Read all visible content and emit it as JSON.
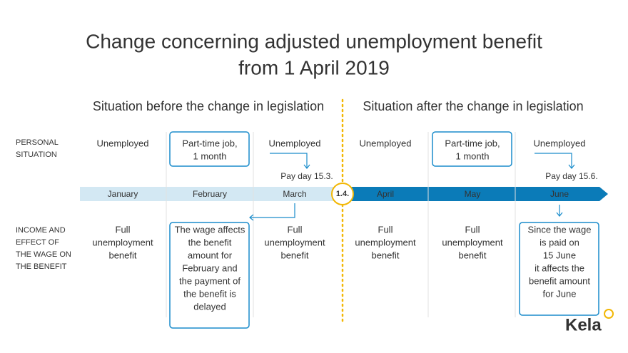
{
  "title": [
    "Change concerning adjusted unemployment benefit",
    "from 1 April 2019"
  ],
  "row_labels": {
    "personal_situation": [
      "PERSONAL",
      "SITUATION"
    ],
    "income": [
      "INCOME AND",
      "EFFECT OF",
      "THE WAGE ON",
      "THE BENEFIT"
    ]
  },
  "divider_label": "1.4.",
  "sections": [
    {
      "heading": "Situation before the change in legislation",
      "months": [
        {
          "name": "January",
          "situation": [
            "Unemployed"
          ],
          "income": [
            "Full",
            "unemployment",
            "benefit"
          ]
        },
        {
          "name": "February",
          "situation": [
            "Part-time job,",
            "1 month"
          ],
          "situation_highlight": true,
          "income": [
            "The wage affects",
            "the benefit",
            "amount for",
            "February and",
            "the payment of",
            "the benefit is",
            "delayed"
          ],
          "income_highlight": true
        },
        {
          "name": "March",
          "situation": [
            "Unemployed"
          ],
          "pay_day": "Pay day 15.3.",
          "income": [
            "Full",
            "unemployment",
            "benefit"
          ]
        }
      ]
    },
    {
      "heading": "Situation after the change in legislation",
      "months": [
        {
          "name": "April",
          "situation": [
            "Unemployed"
          ],
          "income": [
            "Full",
            "unemployment",
            "benefit"
          ]
        },
        {
          "name": "May",
          "situation": [
            "Part-time job,",
            "1 month"
          ],
          "situation_highlight": true,
          "income": [
            "Full",
            "unemployment",
            "benefit"
          ]
        },
        {
          "name": "June",
          "situation": [
            "Unemployed"
          ],
          "pay_day": "Pay day 15.6.",
          "income": [
            "Since the wage",
            "is paid on",
            "15 June",
            "it affects the",
            "benefit amount",
            "for June"
          ],
          "income_highlight": true
        }
      ]
    }
  ],
  "logo": "Kela"
}
